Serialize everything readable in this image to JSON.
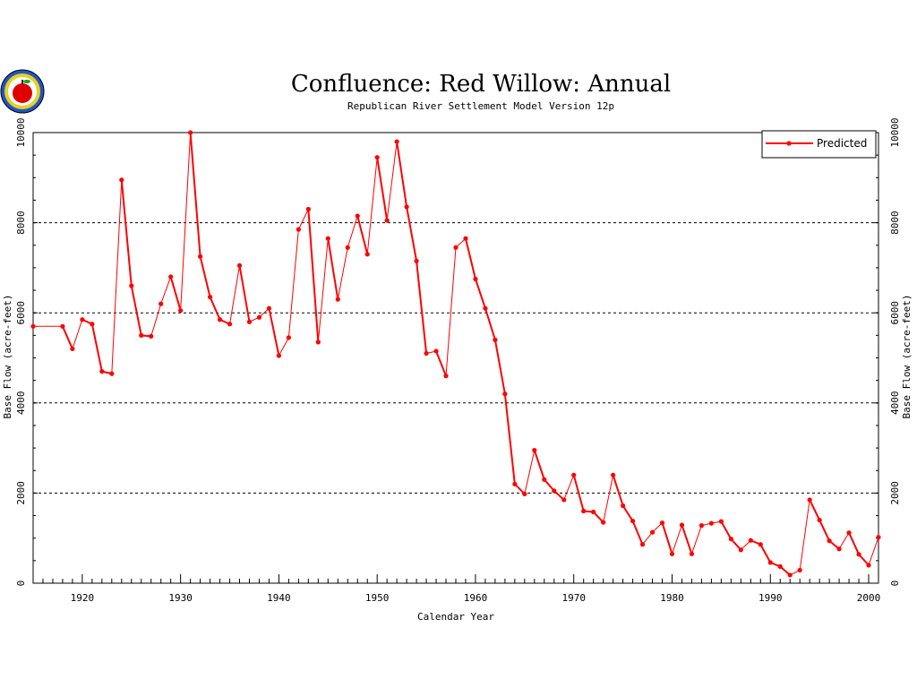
{
  "colors": {
    "series": "#ff0000",
    "grid": "#000000",
    "axis": "#000000"
  },
  "logo": {
    "icon": "apple-logo-icon"
  },
  "chart_data": {
    "type": "line",
    "title": "Confluence: Red Willow: Annual",
    "subtitle": "Republican River Settlement Model Version 12p",
    "xlabel": "Calendar Year",
    "ylabel": "Base Flow (acre-feet)",
    "ylabel_right": "Base Flow (acre-feet)",
    "xlim": [
      1915,
      2001
    ],
    "ylim": [
      0,
      10000
    ],
    "x_ticks": [
      1920,
      1930,
      1940,
      1950,
      1960,
      1970,
      1980,
      1990,
      2000
    ],
    "y_ticks": [
      0,
      2000,
      4000,
      6000,
      8000,
      10000
    ],
    "grid": "horizontal dashed",
    "legend_position": "top-right",
    "series": [
      {
        "name": "Predicted",
        "x": [
          1915,
          1918,
          1919,
          1920,
          1921,
          1922,
          1923,
          1924,
          1925,
          1926,
          1927,
          1928,
          1929,
          1930,
          1931,
          1932,
          1933,
          1934,
          1935,
          1936,
          1937,
          1938,
          1939,
          1940,
          1941,
          1942,
          1943,
          1944,
          1945,
          1946,
          1947,
          1948,
          1949,
          1950,
          1951,
          1952,
          1953,
          1954,
          1955,
          1956,
          1957,
          1958,
          1959,
          1960,
          1961,
          1962,
          1963,
          1964,
          1965,
          1966,
          1967,
          1968,
          1969,
          1970,
          1971,
          1972,
          1973,
          1974,
          1975,
          1976,
          1977,
          1978,
          1979,
          1980,
          1981,
          1982,
          1983,
          1984,
          1985,
          1986,
          1987,
          1988,
          1989,
          1990,
          1991,
          1992,
          1993,
          1994,
          1995,
          1996,
          1997,
          1998,
          1999,
          2000,
          2001
        ],
        "y": [
          5700,
          5700,
          5200,
          5850,
          5750,
          4700,
          4650,
          8950,
          6600,
          5500,
          5480,
          6200,
          6800,
          6050,
          10000,
          7250,
          6350,
          5850,
          5750,
          7050,
          5800,
          5900,
          6100,
          5050,
          5450,
          7850,
          8300,
          5350,
          7650,
          6300,
          7450,
          8150,
          7300,
          9450,
          8050,
          9800,
          8350,
          7150,
          5100,
          5150,
          4600,
          7450,
          7650,
          6750,
          6100,
          5400,
          4200,
          2200,
          1980,
          2950,
          2300,
          2050,
          1850,
          2400,
          1600,
          1580,
          1350,
          2400,
          1720,
          1380,
          860,
          1130,
          1340,
          650,
          1290,
          650,
          1280,
          1330,
          1370,
          980,
          740,
          950,
          860,
          460,
          370,
          180,
          290,
          1850,
          1400,
          940,
          760,
          1120,
          640,
          400,
          1020
        ]
      }
    ]
  }
}
